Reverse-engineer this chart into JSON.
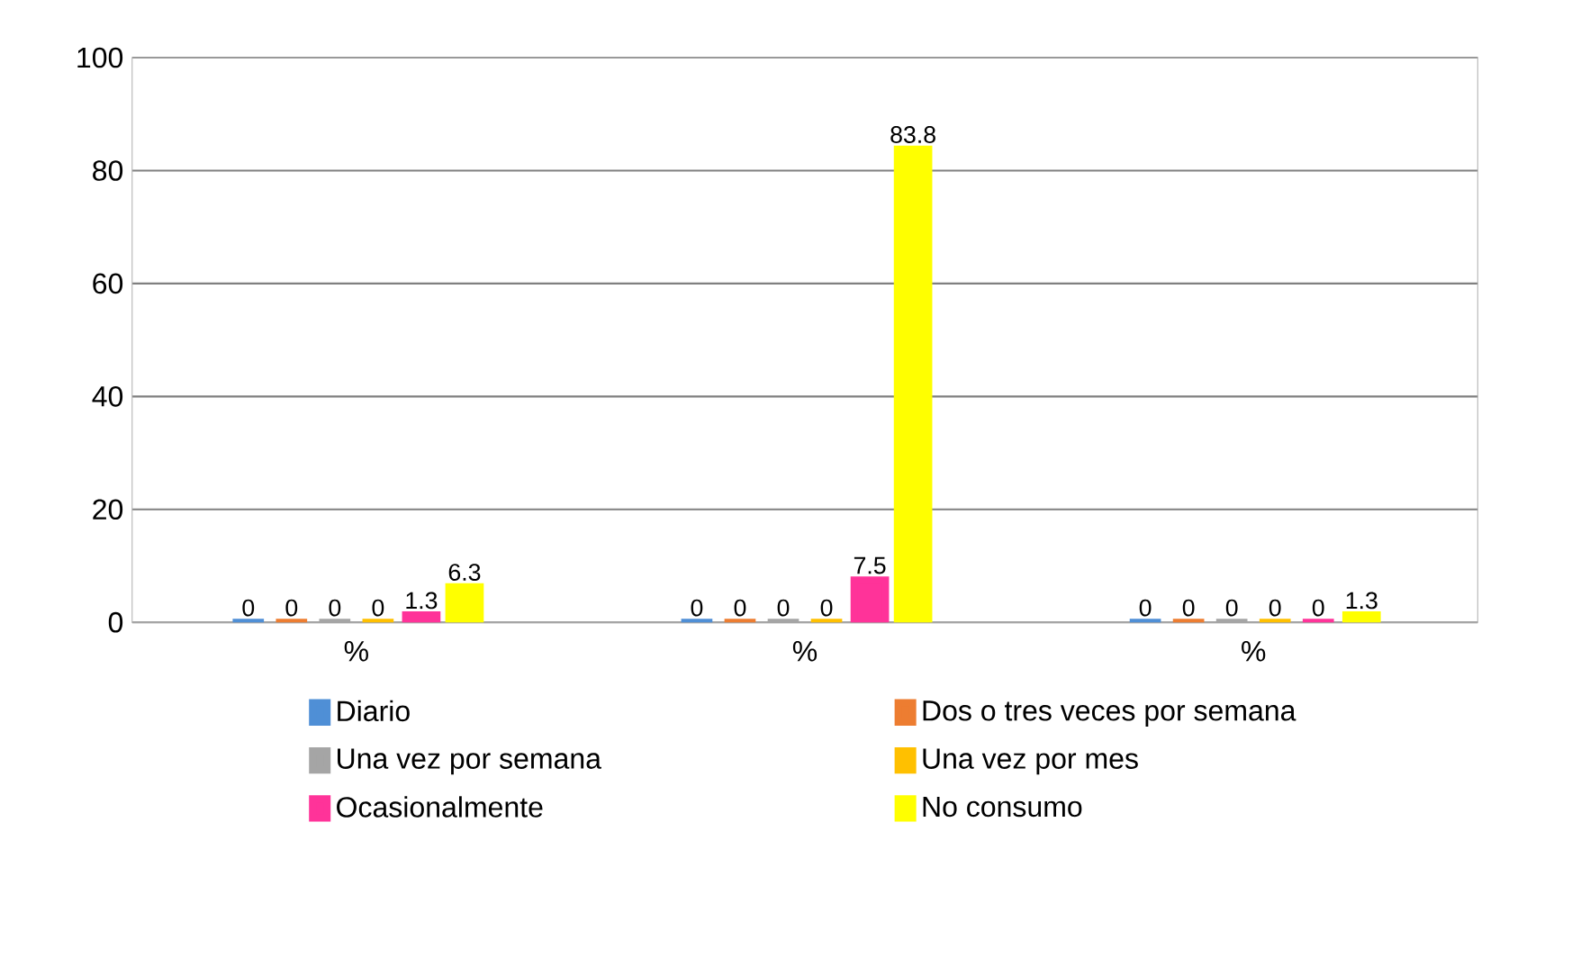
{
  "chart_data": {
    "type": "bar",
    "categories": [
      "%",
      "%",
      "%"
    ],
    "series": [
      {
        "name": "Diario",
        "color": "#4f8fd6",
        "values": [
          0,
          0,
          0
        ]
      },
      {
        "name": "Dos o tres veces por semana",
        "color": "#ed7d31",
        "values": [
          0,
          0,
          0
        ]
      },
      {
        "name": "Una vez por semana",
        "color": "#a5a5a5",
        "values": [
          0,
          0,
          0
        ]
      },
      {
        "name": "Una vez por mes",
        "color": "#ffc000",
        "values": [
          0,
          0,
          0
        ]
      },
      {
        "name": "Ocasionalmente",
        "color": "#ff3399",
        "values": [
          1.3,
          7.5,
          0
        ]
      },
      {
        "name": "No consumo",
        "color": "#ffff00",
        "values": [
          6.3,
          83.8,
          1.3
        ]
      }
    ],
    "ylim": [
      0,
      100
    ],
    "yticks": [
      0,
      20,
      40,
      60,
      80,
      100
    ],
    "grid": "y",
    "data_labels": true,
    "legend": "bottom"
  }
}
